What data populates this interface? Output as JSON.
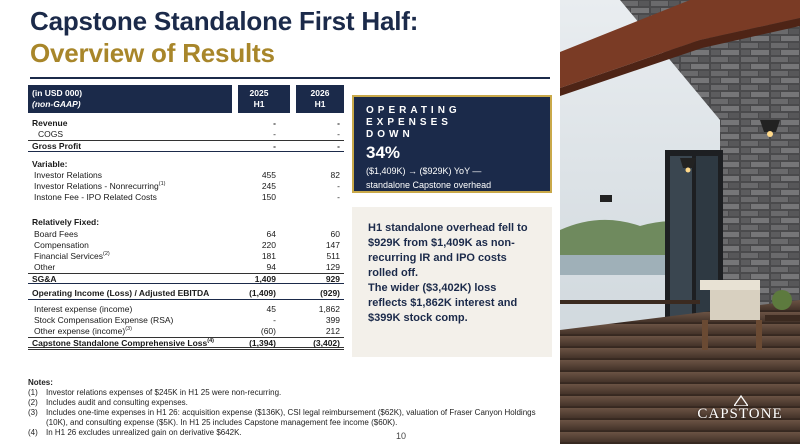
{
  "header": {
    "title_line1": "Capstone Standalone First Half:",
    "title_line2": "Overview of Results"
  },
  "table": {
    "head_label1": "(in USD 000)",
    "head_label2": "(non-GAAP)",
    "col1_year": "2025",
    "col1_period": "H1",
    "col2_year": "2026",
    "col2_period": "H1",
    "rows": [
      {
        "label": "Revenue",
        "v1": "-",
        "v2": "-"
      },
      {
        "label": "COGS",
        "v1": "-",
        "v2": "-"
      },
      {
        "label": "Gross Profit",
        "v1": "-",
        "v2": "-"
      },
      {
        "label": "Variable:",
        "v1": "",
        "v2": ""
      },
      {
        "label": "Investor Relations",
        "v1": "455",
        "v2": "82"
      },
      {
        "label": "Investor Relations - Nonrecurring",
        "sup": "(1)",
        "v1": "245",
        "v2": "-"
      },
      {
        "label": "Instone Fee - IPO Related Costs",
        "v1": "150",
        "v2": "-"
      },
      {
        "label": "Relatively Fixed:",
        "v1": "",
        "v2": ""
      },
      {
        "label": "Board Fees",
        "v1": "64",
        "v2": "60"
      },
      {
        "label": "Compensation",
        "v1": "220",
        "v2": "147"
      },
      {
        "label": "Financial Services",
        "sup": "(2)",
        "v1": "181",
        "v2": "511"
      },
      {
        "label": "Other",
        "v1": "94",
        "v2": "129"
      },
      {
        "label": "SG&A",
        "v1": "1,409",
        "v2": "929"
      },
      {
        "label": "Operating Income (Loss) / Adjusted EBITDA",
        "v1": "(1,409)",
        "v2": "(929)"
      },
      {
        "label": "Interest expense (income)",
        "v1": "45",
        "v2": "1,862"
      },
      {
        "label": "Stock Compensation Expense (RSA)",
        "v1": "-",
        "v2": "399"
      },
      {
        "label": "Other expense (income)",
        "sup": "(3)",
        "v1": "(60)",
        "v2": "212"
      },
      {
        "label": "Capstone Standalone Comprehensive Loss",
        "sup": "(4)",
        "v1": "(1,394)",
        "v2": "(3,402)"
      }
    ]
  },
  "notes": {
    "heading": "Notes:",
    "items": [
      {
        "num": "(1)",
        "text": "Investor relations expenses of $245K in H1 25 were non-recurring."
      },
      {
        "num": "(2)",
        "text": "Includes audit and consulting expenses."
      },
      {
        "num": "(3)",
        "text": "Includes one-time expenses in H1 26: acquisition expense ($136K), CSI legal reimbursement ($62K), valuation of Fraser Canyon Holdings (10K), and consulting expense ($5K). In H1 25 includes Capstone management fee income ($60K)."
      },
      {
        "num": "(4)",
        "text": "In H1 26 excludes unrealized gain on derivative $642K."
      }
    ]
  },
  "callout_opex": {
    "line1": "OPERATING EXPENSES",
    "line2": "DOWN",
    "percent": "34%",
    "desc1": "($1,409K) → ($929K) YoY —",
    "desc2": "standalone Capstone overhead"
  },
  "callout_summary": {
    "para1": "H1 standalone overhead fell to $929K from $1,409K as non-recurring IR and IPO costs rolled off.",
    "para2": "The wider ($3,402K) loss reflects $1,862K interest and $399K stock comp."
  },
  "page_number": "10",
  "logo_text": "CAPSTONE",
  "colors": {
    "navy": "#1b2a4a",
    "gold": "#a8862a",
    "panel": "#f3f0ea"
  }
}
